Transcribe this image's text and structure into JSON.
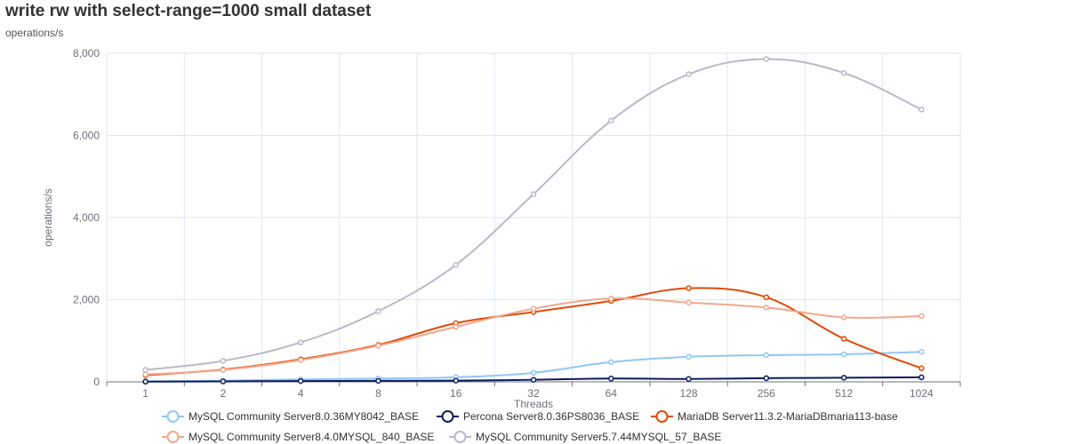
{
  "title": "write rw with select-range=1000 small dataset",
  "subtitle": "operations/s",
  "chart_data": {
    "type": "line",
    "title": "write rw with select-range=1000 small dataset",
    "xlabel": "Threads",
    "ylabel": "operations/s",
    "ylim": [
      0,
      8000
    ],
    "yticks": [
      0,
      2000,
      4000,
      6000,
      8000
    ],
    "ytick_labels": [
      "0",
      "2,000",
      "4,000",
      "6,000",
      "8,000"
    ],
    "categories": [
      "1",
      "2",
      "4",
      "8",
      "16",
      "32",
      "64",
      "128",
      "256",
      "512",
      "1024"
    ],
    "grid": true,
    "legend_position": "bottom",
    "series": [
      {
        "name": "MySQL Community Server8.0.36MY8042_BASE",
        "color": "#91c7f5",
        "values": [
          10,
          30,
          60,
          80,
          110,
          220,
          480,
          610,
          650,
          670,
          730
        ]
      },
      {
        "name": "Percona Server8.0.36PS8036_BASE",
        "color": "#0d1b5e",
        "values": [
          5,
          10,
          20,
          25,
          30,
          50,
          80,
          70,
          90,
          100,
          110
        ]
      },
      {
        "name": "MariaDB Server11.3.2-MariaDBmaria113-base",
        "color": "#e04a0a",
        "values": [
          160,
          300,
          550,
          900,
          1430,
          1700,
          1970,
          2280,
          2060,
          1050,
          330
        ]
      },
      {
        "name": "MySQL Community Server8.4.0MYSQL_840_BASE",
        "color": "#f2a88c",
        "values": [
          180,
          290,
          530,
          880,
          1340,
          1780,
          2030,
          1930,
          1810,
          1570,
          1600
        ]
      },
      {
        "name": "MySQL Community Server5.7.44MYSQL_57_BASE",
        "color": "#b9b9c8",
        "values": [
          290,
          510,
          960,
          1720,
          2850,
          4570,
          6360,
          7490,
          7860,
          7520,
          6630
        ]
      }
    ]
  }
}
